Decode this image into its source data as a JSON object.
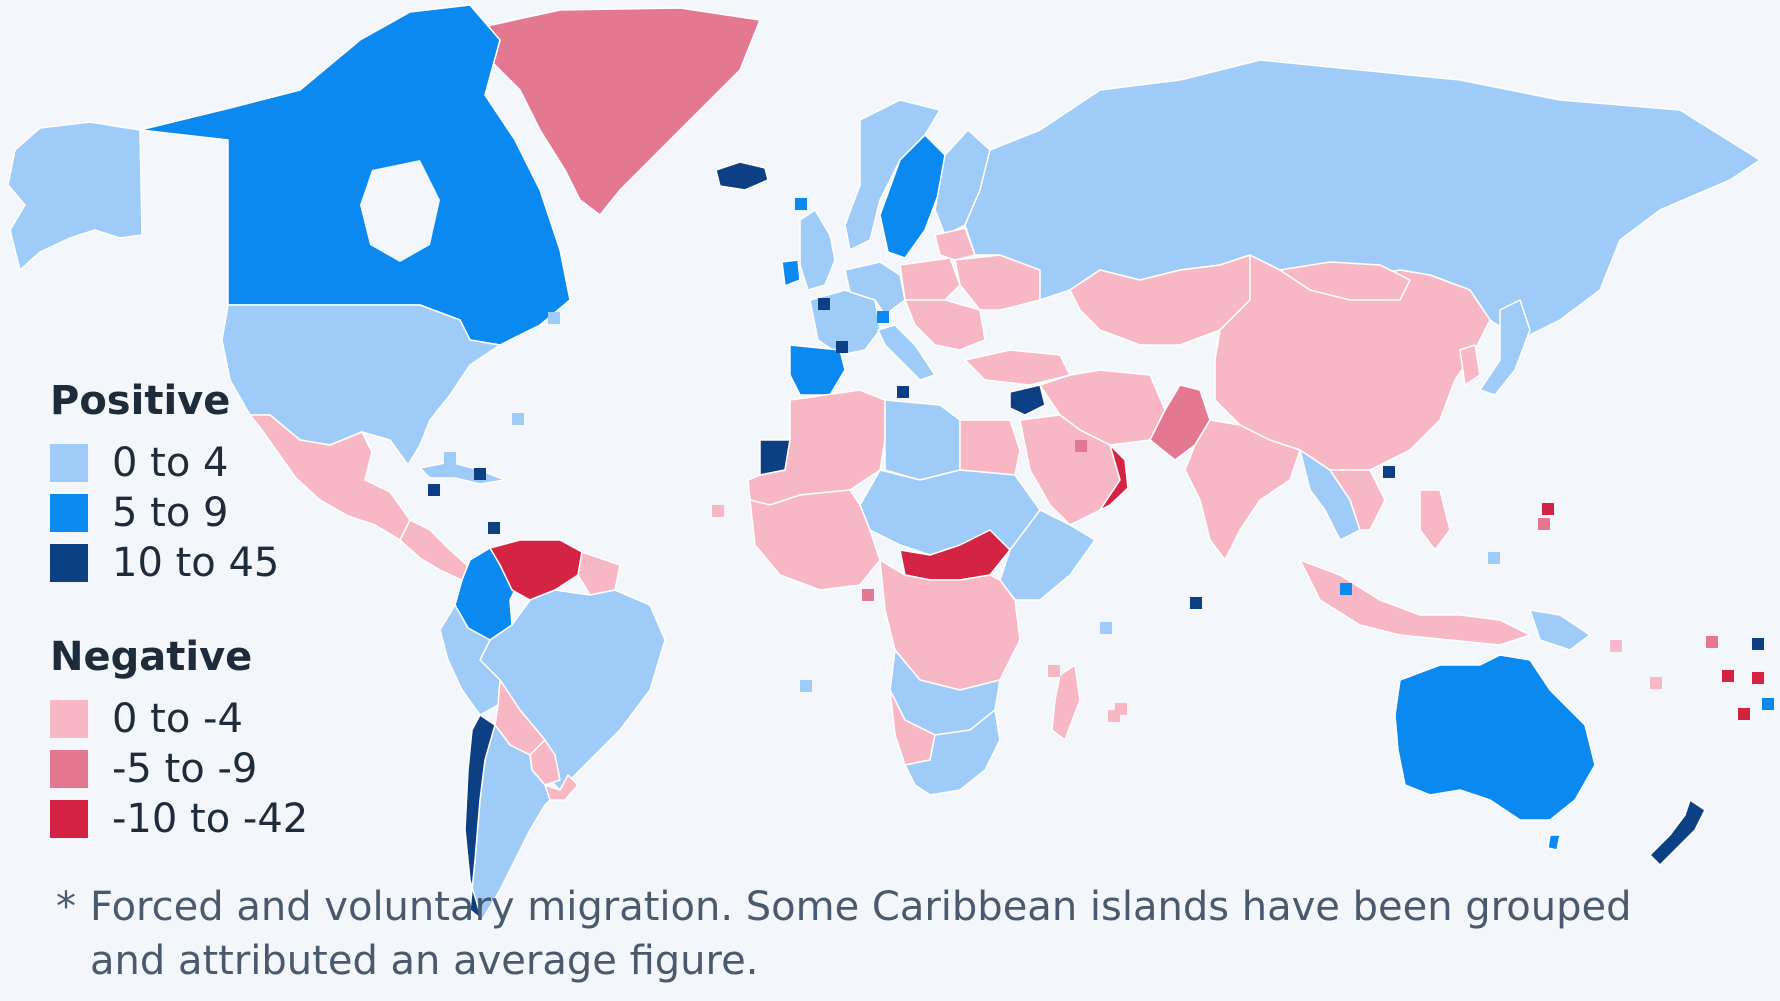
{
  "legend": {
    "positive_title": "Positive",
    "positive_items": [
      {
        "label": "0 to 4",
        "color": "#9ecbf7"
      },
      {
        "label": "5 to 9",
        "color": "#0a8af0"
      },
      {
        "label": "10 to 45",
        "color": "#0d3f84"
      }
    ],
    "negative_title": "Negative",
    "negative_items": [
      {
        "label": "0 to -4",
        "color": "#f7b7c5"
      },
      {
        "label": "-5 to -9",
        "color": "#e57891"
      },
      {
        "label": "-10 to -42",
        "color": "#d52343"
      }
    ]
  },
  "footnote": {
    "star": "*",
    "text": "Forced and voluntary migration. Some Caribbean islands have been grouped and attributed an average figure."
  },
  "colors": {
    "background": "#f3f6fa",
    "pos_low": "#9ecbf7",
    "pos_mid": "#0a8af0",
    "pos_high": "#0d3f84",
    "neg_low": "#f7b7c5",
    "neg_mid": "#e57891",
    "neg_high": "#d52343",
    "border": "#ffffff"
  }
}
